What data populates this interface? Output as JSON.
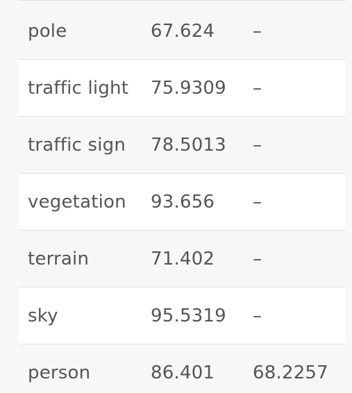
{
  "table": {
    "rows": [
      {
        "label": "pole",
        "value1": "67.624",
        "value2": "–"
      },
      {
        "label": "traffic light",
        "value1": "75.9309",
        "value2": "–"
      },
      {
        "label": "traffic sign",
        "value1": "78.5013",
        "value2": "–"
      },
      {
        "label": "vegetation",
        "value1": "93.656",
        "value2": "–"
      },
      {
        "label": "terrain",
        "value1": "71.402",
        "value2": "–"
      },
      {
        "label": "sky",
        "value1": "95.5319",
        "value2": "–"
      },
      {
        "label": "person",
        "value1": "86.401",
        "value2": "68.2257"
      }
    ]
  }
}
